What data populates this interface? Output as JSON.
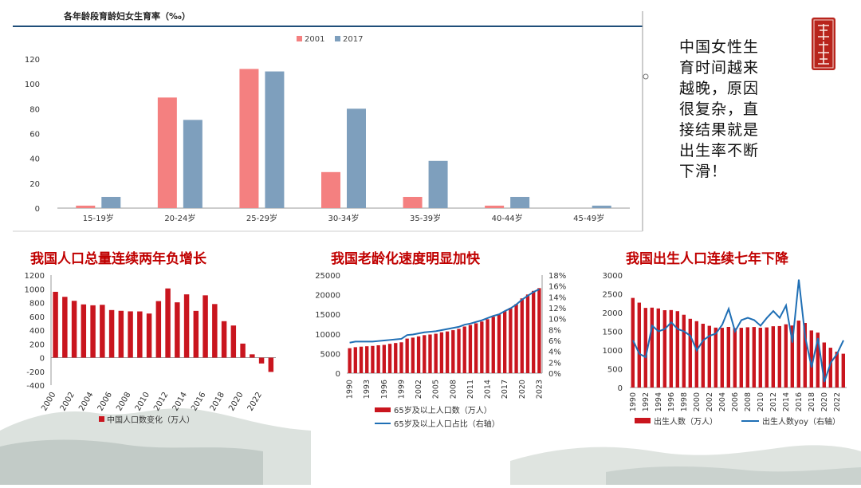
{
  "side_note": "中国女性生育时间越来越晚，原因很复杂，直接结果就是出生率不断下滑！",
  "colors": {
    "pink": "#f48080",
    "blue": "#7e9fbd",
    "red": "#c9151e",
    "line_blue": "#1f6fb5",
    "title_red": "#c00000",
    "seal": "#b8241c"
  },
  "chart_data": [
    {
      "type": "bar",
      "title": "各年龄段育龄妇女生育率（‰）",
      "categories": [
        "15-19岁",
        "20-24岁",
        "25-29岁",
        "30-34岁",
        "35-39岁",
        "40-44岁",
        "45-49岁"
      ],
      "series": [
        {
          "name": "2001",
          "values": [
            2,
            89,
            112,
            29,
            9,
            2,
            0
          ]
        },
        {
          "name": "2017",
          "values": [
            9,
            71,
            110,
            80,
            38,
            9,
            2
          ]
        }
      ],
      "ylim": [
        0,
        120
      ],
      "yticks": [
        0,
        20,
        40,
        60,
        80,
        100,
        120
      ],
      "legend": "top-center",
      "grid": false
    },
    {
      "type": "bar",
      "title": "我国人口总量连续两年负增长",
      "x": [
        2000,
        2001,
        2002,
        2003,
        2004,
        2005,
        2006,
        2007,
        2008,
        2009,
        2010,
        2011,
        2012,
        2013,
        2014,
        2015,
        2016,
        2017,
        2018,
        2019,
        2020,
        2021,
        2022,
        2023
      ],
      "xticks": [
        "2000",
        "2002",
        "2004",
        "2006",
        "2008",
        "2010",
        "2012",
        "2014",
        "2016",
        "2018",
        "2020",
        "2022"
      ],
      "series": [
        {
          "name": "中国人口数变化（万人）",
          "values": [
            957,
            884,
            826,
            774,
            761,
            768,
            692,
            681,
            673,
            672,
            641,
            822,
            1006,
            804,
            920,
            680,
            906,
            779,
            530,
            467,
            204,
            48,
            -85,
            -208
          ]
        }
      ],
      "ylim": [
        -400,
        1200
      ],
      "yticks": [
        -400,
        -200,
        0,
        200,
        400,
        600,
        800,
        1000,
        1200
      ],
      "legend": "bottom",
      "grid": false
    },
    {
      "type": "bar",
      "title": "我国老龄化速度明显加快",
      "x": [
        1990,
        1991,
        1992,
        1993,
        1994,
        1995,
        1996,
        1997,
        1998,
        1999,
        2000,
        2001,
        2002,
        2003,
        2004,
        2005,
        2006,
        2007,
        2008,
        2009,
        2010,
        2011,
        2012,
        2013,
        2014,
        2015,
        2016,
        2017,
        2018,
        2019,
        2020,
        2021,
        2022,
        2023
      ],
      "xticks": [
        "1990",
        "1993",
        "1996",
        "1999",
        "2002",
        "2005",
        "2008",
        "2011",
        "2014",
        "2017",
        "2020",
        "2023"
      ],
      "series": [
        {
          "name": "65岁及以上人口数（万人）",
          "axis": "left",
          "values": [
            6368,
            6628,
            6762,
            6868,
            6953,
            7108,
            7210,
            7481,
            7688,
            7870,
            8821,
            9062,
            9377,
            9692,
            9857,
            10055,
            10419,
            10636,
            10956,
            11307,
            11894,
            12288,
            12714,
            13161,
            13755,
            14386,
            15003,
            15831,
            16658,
            17603,
            19064,
            20056,
            20978,
            21676
          ]
        },
        {
          "name": "65岁及以上人口占比（右轴）",
          "axis": "right",
          "values": [
            5.6,
            5.8,
            5.8,
            5.8,
            5.8,
            5.9,
            6.0,
            6.1,
            6.2,
            6.3,
            7.0,
            7.1,
            7.3,
            7.5,
            7.6,
            7.7,
            7.9,
            8.1,
            8.3,
            8.5,
            8.9,
            9.1,
            9.4,
            9.7,
            10.1,
            10.5,
            10.8,
            11.4,
            11.9,
            12.6,
            13.5,
            14.2,
            14.9,
            15.4
          ]
        }
      ],
      "ylim": [
        0,
        25000
      ],
      "yticks": [
        0,
        5000,
        10000,
        15000,
        20000,
        25000
      ],
      "y2lim": [
        0,
        18
      ],
      "y2ticks": [
        "0%",
        "2%",
        "4%",
        "6%",
        "8%",
        "10%",
        "12%",
        "14%",
        "16%",
        "18%"
      ],
      "legend": "bottom",
      "grid": false
    },
    {
      "type": "bar",
      "title": "我国出生人口连续七年下降",
      "x": [
        1990,
        1991,
        1992,
        1993,
        1994,
        1995,
        1996,
        1997,
        1998,
        1999,
        2000,
        2001,
        2002,
        2003,
        2004,
        2005,
        2006,
        2007,
        2008,
        2009,
        2010,
        2011,
        2012,
        2013,
        2014,
        2015,
        2016,
        2017,
        2018,
        2019,
        2020,
        2021,
        2022,
        2023
      ],
      "xticks": [
        "1990",
        "1992",
        "1994",
        "1996",
        "1998",
        "2000",
        "2002",
        "2004",
        "2006",
        "2008",
        "2010",
        "2012",
        "2014",
        "2016",
        "2018",
        "2020",
        "2022"
      ],
      "series": [
        {
          "name": "出生人数（万人）",
          "axis": "left",
          "values": [
            2391,
            2265,
            2125,
            2132,
            2110,
            2063,
            2067,
            2038,
            1942,
            1834,
            1771,
            1702,
            1647,
            1599,
            1593,
            1617,
            1584,
            1594,
            1608,
            1615,
            1596,
            1604,
            1635,
            1640,
            1687,
            1655,
            1786,
            1723,
            1523,
            1465,
            1202,
            1062,
            956,
            902
          ]
        },
        {
          "name": "出生人数yoy（右轴）",
          "axis": "right",
          "values_rel": [
            0.42,
            0.3,
            0.27,
            0.55,
            0.5,
            0.52,
            0.58,
            0.52,
            0.5,
            0.46,
            0.33,
            0.42,
            0.46,
            0.48,
            0.56,
            0.7,
            0.5,
            0.6,
            0.62,
            0.6,
            0.55,
            0.62,
            0.68,
            0.62,
            0.73,
            0.4,
            0.96,
            0.45,
            0.18,
            0.44,
            0.05,
            0.22,
            0.3,
            0.42
          ]
        }
      ],
      "ylim": [
        0,
        3000
      ],
      "yticks": [
        0,
        500,
        1000,
        1500,
        2000,
        2500,
        3000
      ],
      "legend": "bottom",
      "grid": false
    }
  ]
}
